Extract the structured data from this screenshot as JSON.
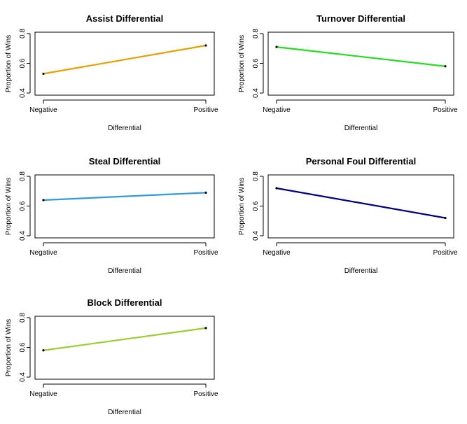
{
  "chart_data": [
    {
      "type": "line",
      "title": "Assist Differential",
      "xlabel": "Differential",
      "ylabel": "Proportion of Wins",
      "categories": [
        "Negative",
        "Positive"
      ],
      "values": [
        0.53,
        0.72
      ],
      "ylim": [
        0.4,
        0.8
      ],
      "yticks": [
        "0.4",
        "0.6",
        "0.8"
      ],
      "color": "#E69F00"
    },
    {
      "type": "line",
      "title": "Turnover Differential",
      "xlabel": "Differential",
      "ylabel": "Proportion of Wins",
      "categories": [
        "Negative",
        "Positive"
      ],
      "values": [
        0.71,
        0.58
      ],
      "ylim": [
        0.4,
        0.8
      ],
      "yticks": [
        "0.4",
        "0.6",
        "0.8"
      ],
      "color": "#22DD22"
    },
    {
      "type": "line",
      "title": "Steal Differential",
      "xlabel": "Differential",
      "ylabel": "Proportion of Wins",
      "categories": [
        "Negative",
        "Positive"
      ],
      "values": [
        0.64,
        0.69
      ],
      "ylim": [
        0.4,
        0.8
      ],
      "yticks": [
        "0.4",
        "0.6",
        "0.8"
      ],
      "color": "#3399DD"
    },
    {
      "type": "line",
      "title": "Personal Foul Differential",
      "xlabel": "Differential",
      "ylabel": "Proportion of Wins",
      "categories": [
        "Negative",
        "Positive"
      ],
      "values": [
        0.72,
        0.52
      ],
      "ylim": [
        0.4,
        0.8
      ],
      "yticks": [
        "0.4",
        "0.6",
        "0.8"
      ],
      "color": "#000080"
    },
    {
      "type": "line",
      "title": "Block Differential",
      "xlabel": "Differential",
      "ylabel": "Proportion of Wins",
      "categories": [
        "Negative",
        "Positive"
      ],
      "values": [
        0.58,
        0.73
      ],
      "ylim": [
        0.4,
        0.8
      ],
      "yticks": [
        "0.4",
        "0.6",
        "0.8"
      ],
      "color": "#9ACD32"
    }
  ]
}
